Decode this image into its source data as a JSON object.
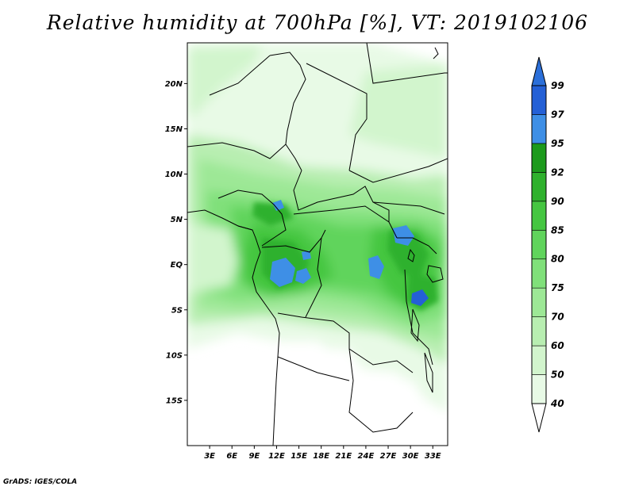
{
  "title": "Relative humidity at 700hPa [%], VT: 2019102106",
  "credit": "GrADS: IGES/COLA",
  "map": {
    "lat_labels": [
      "20N",
      "15N",
      "10N",
      "5N",
      "EQ",
      "5S",
      "10S",
      "15S"
    ],
    "lat_values": [
      20,
      15,
      10,
      5,
      0,
      -5,
      -10,
      -15
    ],
    "lon_labels": [
      "3E",
      "6E",
      "9E",
      "12E",
      "15E",
      "18E",
      "21E",
      "24E",
      "27E",
      "30E",
      "33E"
    ],
    "lon_values": [
      3,
      6,
      9,
      12,
      15,
      18,
      21,
      24,
      27,
      30,
      33
    ],
    "lat_range": [
      -20,
      24.5
    ],
    "lon_range": [
      0,
      35
    ]
  },
  "colorbar": {
    "labels": [
      "40",
      "50",
      "60",
      "70",
      "75",
      "80",
      "85",
      "90",
      "92",
      "95",
      "97",
      "99"
    ],
    "colors": [
      "#ffffff",
      "#e8fae6",
      "#d2f5cd",
      "#b8eeb1",
      "#9de896",
      "#80e07a",
      "#60d45c",
      "#45c641",
      "#2fb12d",
      "#1c9a1c",
      "#3e8fe6",
      "#2460d6",
      "#2b6fd9"
    ]
  }
}
